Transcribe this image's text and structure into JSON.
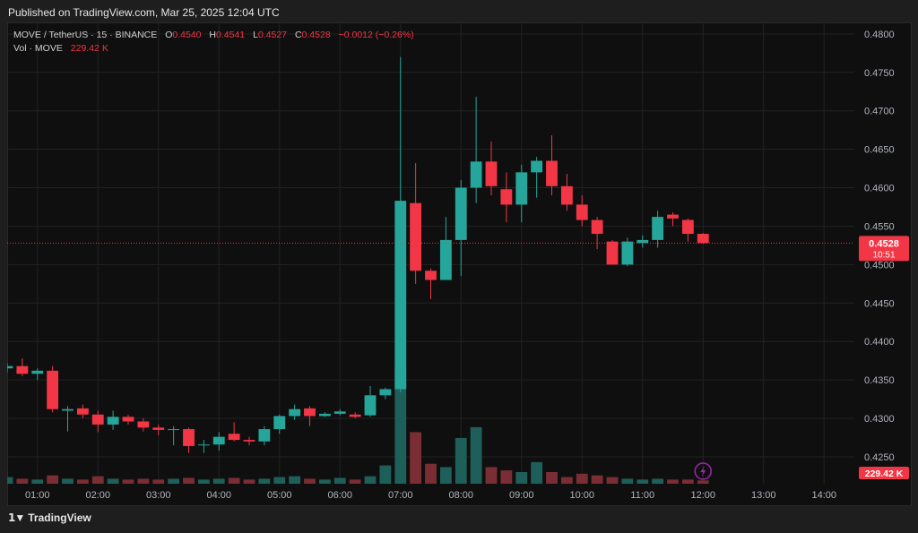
{
  "header": {
    "published": "Published on TradingView.com, Mar 25, 2025 12:04 UTC"
  },
  "legend": {
    "symbol": "MOVE / TetherUS · 15 · BINANCE",
    "open_label": "O",
    "open": "0.4540",
    "high_label": "H",
    "high": "0.4541",
    "low_label": "L",
    "low": "0.4527",
    "close_label": "C",
    "close": "0.4528",
    "change": "−0.0012 (−0.26%)",
    "vol_label": "Vol · MOVE",
    "vol_value": "229.42 K"
  },
  "price_marker": {
    "price": "0.4528",
    "countdown": "10:51"
  },
  "volume_marker": {
    "value": "229.42 K"
  },
  "footer": {
    "brand": "TradingView"
  },
  "colors": {
    "up": "#26a69a",
    "down": "#f23645",
    "vol_up": "#1f5f5a",
    "vol_down": "#7a2e33",
    "background": "#0f0f0f",
    "grid": "#222222"
  },
  "chart_data": {
    "type": "candlestick",
    "symbol": "MOVE / TetherUS",
    "interval": "15",
    "exchange": "BINANCE",
    "y_ticks": [
      0.425,
      0.43,
      0.435,
      0.44,
      0.445,
      0.45,
      0.455,
      0.46,
      0.465,
      0.47,
      0.475,
      0.48
    ],
    "ylim": [
      0.4215,
      0.4815
    ],
    "x_ticks": [
      "01:00",
      "02:00",
      "03:00",
      "04:00",
      "05:00",
      "06:00",
      "07:00",
      "08:00",
      "09:00",
      "10:00",
      "11:00",
      "12:00",
      "13:00",
      "14:00"
    ],
    "x_range": [
      "00:30",
      "14:30"
    ],
    "last_price": 0.4528,
    "candles": [
      {
        "t": "00:30",
        "o": 0.4365,
        "h": 0.4372,
        "l": 0.436,
        "c": 0.4368,
        "v": 8
      },
      {
        "t": "00:45",
        "o": 0.4368,
        "h": 0.4378,
        "l": 0.4355,
        "c": 0.4358,
        "v": 6
      },
      {
        "t": "01:00",
        "o": 0.4358,
        "h": 0.4365,
        "l": 0.435,
        "c": 0.4362,
        "v": 5
      },
      {
        "t": "01:15",
        "o": 0.4362,
        "h": 0.4368,
        "l": 0.4308,
        "c": 0.4312,
        "v": 10
      },
      {
        "t": "01:30",
        "o": 0.431,
        "h": 0.4316,
        "l": 0.4283,
        "c": 0.4312,
        "v": 6
      },
      {
        "t": "01:45",
        "o": 0.4313,
        "h": 0.4318,
        "l": 0.43,
        "c": 0.4305,
        "v": 5
      },
      {
        "t": "02:00",
        "o": 0.4305,
        "h": 0.431,
        "l": 0.4282,
        "c": 0.4292,
        "v": 9
      },
      {
        "t": "02:15",
        "o": 0.4292,
        "h": 0.431,
        "l": 0.4285,
        "c": 0.4302,
        "v": 6
      },
      {
        "t": "02:30",
        "o": 0.4302,
        "h": 0.4305,
        "l": 0.4292,
        "c": 0.4296,
        "v": 5
      },
      {
        "t": "02:45",
        "o": 0.4296,
        "h": 0.43,
        "l": 0.4283,
        "c": 0.4288,
        "v": 6
      },
      {
        "t": "03:00",
        "o": 0.4288,
        "h": 0.4292,
        "l": 0.4278,
        "c": 0.4285,
        "v": 5
      },
      {
        "t": "03:15",
        "o": 0.4285,
        "h": 0.429,
        "l": 0.4265,
        "c": 0.4286,
        "v": 6
      },
      {
        "t": "03:30",
        "o": 0.4286,
        "h": 0.4288,
        "l": 0.4255,
        "c": 0.4264,
        "v": 7
      },
      {
        "t": "03:45",
        "o": 0.4265,
        "h": 0.4272,
        "l": 0.4255,
        "c": 0.4266,
        "v": 5
      },
      {
        "t": "04:00",
        "o": 0.4266,
        "h": 0.4282,
        "l": 0.4258,
        "c": 0.4276,
        "v": 6
      },
      {
        "t": "04:15",
        "o": 0.428,
        "h": 0.4295,
        "l": 0.427,
        "c": 0.4272,
        "v": 7
      },
      {
        "t": "04:30",
        "o": 0.4272,
        "h": 0.4276,
        "l": 0.4265,
        "c": 0.427,
        "v": 5
      },
      {
        "t": "04:45",
        "o": 0.427,
        "h": 0.429,
        "l": 0.4265,
        "c": 0.4286,
        "v": 6
      },
      {
        "t": "05:00",
        "o": 0.4286,
        "h": 0.4305,
        "l": 0.428,
        "c": 0.4303,
        "v": 8
      },
      {
        "t": "05:15",
        "o": 0.4303,
        "h": 0.4318,
        "l": 0.4298,
        "c": 0.4312,
        "v": 9
      },
      {
        "t": "05:30",
        "o": 0.4313,
        "h": 0.4316,
        "l": 0.429,
        "c": 0.4303,
        "v": 6
      },
      {
        "t": "05:45",
        "o": 0.4303,
        "h": 0.4308,
        "l": 0.4302,
        "c": 0.4306,
        "v": 5
      },
      {
        "t": "06:00",
        "o": 0.4306,
        "h": 0.4312,
        "l": 0.4304,
        "c": 0.4309,
        "v": 7
      },
      {
        "t": "06:15",
        "o": 0.4305,
        "h": 0.4308,
        "l": 0.43,
        "c": 0.4302,
        "v": 5
      },
      {
        "t": "06:30",
        "o": 0.4304,
        "h": 0.4342,
        "l": 0.4302,
        "c": 0.433,
        "v": 9
      },
      {
        "t": "06:45",
        "o": 0.433,
        "h": 0.434,
        "l": 0.4325,
        "c": 0.4338,
        "v": 22
      },
      {
        "t": "07:00",
        "o": 0.4338,
        "h": 0.477,
        "l": 0.4334,
        "c": 0.4583,
        "v": 140
      },
      {
        "t": "07:15",
        "o": 0.458,
        "h": 0.4632,
        "l": 0.4475,
        "c": 0.4492,
        "v": 62
      },
      {
        "t": "07:30",
        "o": 0.4492,
        "h": 0.4495,
        "l": 0.4455,
        "c": 0.448,
        "v": 24
      },
      {
        "t": "07:45",
        "o": 0.448,
        "h": 0.4562,
        "l": 0.448,
        "c": 0.4532,
        "v": 20
      },
      {
        "t": "08:00",
        "o": 0.4532,
        "h": 0.461,
        "l": 0.4485,
        "c": 0.46,
        "v": 55
      },
      {
        "t": "08:15",
        "o": 0.46,
        "h": 0.4718,
        "l": 0.458,
        "c": 0.4634,
        "v": 68
      },
      {
        "t": "08:30",
        "o": 0.4634,
        "h": 0.466,
        "l": 0.459,
        "c": 0.4602,
        "v": 20
      },
      {
        "t": "08:45",
        "o": 0.4598,
        "h": 0.462,
        "l": 0.4555,
        "c": 0.4578,
        "v": 16
      },
      {
        "t": "09:00",
        "o": 0.4578,
        "h": 0.463,
        "l": 0.4555,
        "c": 0.462,
        "v": 14
      },
      {
        "t": "09:15",
        "o": 0.462,
        "h": 0.464,
        "l": 0.4587,
        "c": 0.4635,
        "v": 26
      },
      {
        "t": "09:30",
        "o": 0.4635,
        "h": 0.4668,
        "l": 0.459,
        "c": 0.4602,
        "v": 14
      },
      {
        "t": "09:45",
        "o": 0.4602,
        "h": 0.4618,
        "l": 0.457,
        "c": 0.4578,
        "v": 8
      },
      {
        "t": "10:00",
        "o": 0.4578,
        "h": 0.459,
        "l": 0.455,
        "c": 0.4558,
        "v": 12
      },
      {
        "t": "10:15",
        "o": 0.4558,
        "h": 0.4562,
        "l": 0.452,
        "c": 0.454,
        "v": 10
      },
      {
        "t": "10:30",
        "o": 0.453,
        "h": 0.4532,
        "l": 0.45,
        "c": 0.45,
        "v": 8
      },
      {
        "t": "10:45",
        "o": 0.45,
        "h": 0.4535,
        "l": 0.4498,
        "c": 0.453,
        "v": 6
      },
      {
        "t": "11:00",
        "o": 0.4528,
        "h": 0.4538,
        "l": 0.4522,
        "c": 0.4532,
        "v": 5
      },
      {
        "t": "11:15",
        "o": 0.4532,
        "h": 0.457,
        "l": 0.4522,
        "c": 0.4562,
        "v": 6
      },
      {
        "t": "11:30",
        "o": 0.4565,
        "h": 0.4568,
        "l": 0.455,
        "c": 0.456,
        "v": 5
      },
      {
        "t": "11:45",
        "o": 0.4558,
        "h": 0.456,
        "l": 0.453,
        "c": 0.454,
        "v": 5
      },
      {
        "t": "12:00",
        "o": 0.454,
        "h": 0.4541,
        "l": 0.4527,
        "c": 0.4528,
        "v": 4
      }
    ]
  }
}
